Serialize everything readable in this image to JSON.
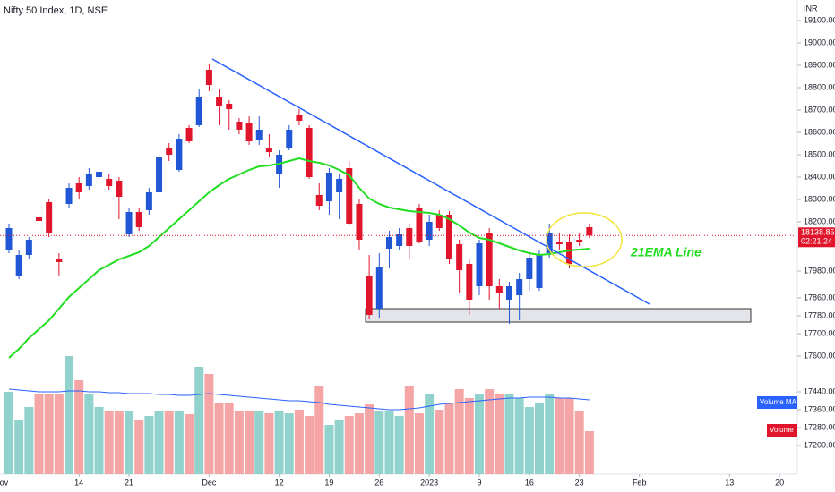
{
  "chart_data": {
    "type": "candlestick",
    "title": "Nifty 50 Index, 1D, NSE",
    "currency": "INR",
    "ylim": [
      17072,
      19192
    ],
    "yticks": [
      {
        "value": 19100,
        "label": "19100.00"
      },
      {
        "value": 19000,
        "label": "19000.00"
      },
      {
        "value": 18900,
        "label": "18900.00"
      },
      {
        "value": 18800,
        "label": "18800.00"
      },
      {
        "value": 18700,
        "label": "18700.00"
      },
      {
        "value": 18600,
        "label": "18600.00"
      },
      {
        "value": 18500,
        "label": "18500.00"
      },
      {
        "value": 18400,
        "label": "18400.00"
      },
      {
        "value": 18300,
        "label": "18300.00"
      },
      {
        "value": 18200,
        "label": "18200.00"
      },
      {
        "value": 17980,
        "label": "17980.00"
      },
      {
        "value": 17860,
        "label": "17860.00"
      },
      {
        "value": 17780,
        "label": "17780.00"
      },
      {
        "value": 17700,
        "label": "17700.00"
      },
      {
        "value": 17600,
        "label": "17600.00"
      },
      {
        "value": 17440,
        "label": "17440.00"
      },
      {
        "value": 17360,
        "label": "17360.00"
      },
      {
        "value": 17280,
        "label": "17280.00"
      },
      {
        "value": 17200,
        "label": "17200.00"
      }
    ],
    "xticks": [
      {
        "value": -0.5,
        "label": "ov"
      },
      {
        "value": 7,
        "label": "14"
      },
      {
        "value": 12,
        "label": "21"
      },
      {
        "value": 20,
        "label": "Dec"
      },
      {
        "value": 27,
        "label": "12"
      },
      {
        "value": 32,
        "label": "19"
      },
      {
        "value": 37,
        "label": "26"
      },
      {
        "value": 42,
        "label": "2023"
      },
      {
        "value": 47,
        "label": "9"
      },
      {
        "value": 52,
        "label": "16"
      },
      {
        "value": 57,
        "label": "23"
      },
      {
        "value": 63,
        "label": "Feb"
      },
      {
        "value": 72,
        "label": "13"
      },
      {
        "value": 77,
        "label": "20"
      }
    ],
    "up_color": "#2157d6",
    "down_color": "#e0142b",
    "volume_up_color": "#92d2cc",
    "volume_down_color": "#f5a5a5",
    "candles": [
      {
        "o": 18072,
        "h": 18192,
        "l": 18060,
        "c": 18172
      },
      {
        "o": 17960,
        "h": 18072,
        "l": 17944,
        "c": 18052
      },
      {
        "o": 18052,
        "h": 18132,
        "l": 18032,
        "c": 18120
      },
      {
        "o": 18220,
        "h": 18252,
        "l": 18192,
        "c": 18204
      },
      {
        "o": 18288,
        "h": 18304,
        "l": 18132,
        "c": 18152
      },
      {
        "o": 18032,
        "h": 18060,
        "l": 17960,
        "c": 18020
      },
      {
        "o": 18280,
        "h": 18372,
        "l": 18264,
        "c": 18352
      },
      {
        "o": 18372,
        "h": 18400,
        "l": 18304,
        "c": 18332
      },
      {
        "o": 18360,
        "h": 18440,
        "l": 18344,
        "c": 18412
      },
      {
        "o": 18400,
        "h": 18452,
        "l": 18392,
        "c": 18424
      },
      {
        "o": 18392,
        "h": 18412,
        "l": 18344,
        "c": 18360
      },
      {
        "o": 18384,
        "h": 18400,
        "l": 18212,
        "c": 18312
      },
      {
        "o": 18144,
        "h": 18264,
        "l": 18132,
        "c": 18244
      },
      {
        "o": 18244,
        "h": 18260,
        "l": 18160,
        "c": 18176
      },
      {
        "o": 18252,
        "h": 18352,
        "l": 18232,
        "c": 18332
      },
      {
        "o": 18332,
        "h": 18512,
        "l": 18320,
        "c": 18488
      },
      {
        "o": 18532,
        "h": 18552,
        "l": 18472,
        "c": 18500
      },
      {
        "o": 18432,
        "h": 18592,
        "l": 18424,
        "c": 18572
      },
      {
        "o": 18620,
        "h": 18632,
        "l": 18552,
        "c": 18560
      },
      {
        "o": 18632,
        "h": 18792,
        "l": 18624,
        "c": 18760
      },
      {
        "o": 18880,
        "h": 18904,
        "l": 18784,
        "c": 18812
      },
      {
        "o": 18760,
        "h": 18792,
        "l": 18632,
        "c": 18720
      },
      {
        "o": 18728,
        "h": 18744,
        "l": 18612,
        "c": 18704
      },
      {
        "o": 18648,
        "h": 18664,
        "l": 18592,
        "c": 18612
      },
      {
        "o": 18640,
        "h": 18672,
        "l": 18544,
        "c": 18560
      },
      {
        "o": 18564,
        "h": 18672,
        "l": 18544,
        "c": 18612
      },
      {
        "o": 18532,
        "h": 18592,
        "l": 18492,
        "c": 18512
      },
      {
        "o": 18412,
        "h": 18520,
        "l": 18352,
        "c": 18500
      },
      {
        "o": 18532,
        "h": 18632,
        "l": 18520,
        "c": 18612
      },
      {
        "o": 18680,
        "h": 18704,
        "l": 18632,
        "c": 18652
      },
      {
        "o": 18620,
        "h": 18632,
        "l": 18392,
        "c": 18400
      },
      {
        "o": 18320,
        "h": 18372,
        "l": 18252,
        "c": 18272
      },
      {
        "o": 18292,
        "h": 18440,
        "l": 18232,
        "c": 18420
      },
      {
        "o": 18332,
        "h": 18412,
        "l": 18212,
        "c": 18392
      },
      {
        "o": 18440,
        "h": 18472,
        "l": 18184,
        "c": 18192
      },
      {
        "o": 18280,
        "h": 18304,
        "l": 18072,
        "c": 18120
      },
      {
        "o": 17960,
        "h": 18052,
        "l": 17764,
        "c": 17784
      },
      {
        "o": 17812,
        "h": 18060,
        "l": 17772,
        "c": 18000
      },
      {
        "o": 18080,
        "h": 18160,
        "l": 17992,
        "c": 18132
      },
      {
        "o": 18092,
        "h": 18172,
        "l": 18072,
        "c": 18144
      },
      {
        "o": 18172,
        "h": 18192,
        "l": 18032,
        "c": 18092
      },
      {
        "o": 18264,
        "h": 18280,
        "l": 18104,
        "c": 18112
      },
      {
        "o": 18120,
        "h": 18232,
        "l": 18092,
        "c": 18200
      },
      {
        "o": 18232,
        "h": 18252,
        "l": 18160,
        "c": 18172
      },
      {
        "o": 18232,
        "h": 18248,
        "l": 18012,
        "c": 18032
      },
      {
        "o": 18100,
        "h": 18120,
        "l": 17880,
        "c": 17984
      },
      {
        "o": 18012,
        "h": 18032,
        "l": 17784,
        "c": 17852
      },
      {
        "o": 17912,
        "h": 18120,
        "l": 17872,
        "c": 18104
      },
      {
        "o": 18152,
        "h": 18172,
        "l": 17852,
        "c": 17912
      },
      {
        "o": 17912,
        "h": 17944,
        "l": 17812,
        "c": 17880
      },
      {
        "o": 17852,
        "h": 17932,
        "l": 17744,
        "c": 17912
      },
      {
        "o": 17872,
        "h": 17972,
        "l": 17760,
        "c": 17944
      },
      {
        "o": 17944,
        "h": 18060,
        "l": 17892,
        "c": 18040
      },
      {
        "o": 17904,
        "h": 18072,
        "l": 17892,
        "c": 18052
      },
      {
        "o": 18060,
        "h": 18192,
        "l": 18040,
        "c": 18152
      },
      {
        "o": 18112,
        "h": 18152,
        "l": 18072,
        "c": 18100
      },
      {
        "o": 18112,
        "h": 18144,
        "l": 17992,
        "c": 18012
      },
      {
        "o": 18120,
        "h": 18152,
        "l": 18092,
        "c": 18112
      },
      {
        "o": 18176,
        "h": 18192,
        "l": 18128,
        "c": 18138.85
      }
    ],
    "ema_name": "21EMA Line",
    "ema_color": "#22dd22",
    "ema": [
      17592,
      17632,
      17680,
      17720,
      17760,
      17812,
      17864,
      17904,
      17944,
      17984,
      18008,
      18032,
      18048,
      18064,
      18092,
      18132,
      18172,
      18212,
      18252,
      18292,
      18332,
      18364,
      18392,
      18412,
      18432,
      18448,
      18452,
      18460,
      18472,
      18484,
      18472,
      18464,
      18452,
      18432,
      18408,
      18352,
      18304,
      18280,
      18264,
      18256,
      18248,
      18244,
      18240,
      18232,
      18212,
      18184,
      18152,
      18128,
      18120,
      18104,
      18088,
      18072,
      18060,
      18052,
      18056,
      18064,
      18072,
      18076,
      18080
    ],
    "volume_name": "Volume",
    "volume_ma_name": "Volume MA",
    "volume_ma_color": "#2962ff",
    "vlim": [
      0,
      180
    ],
    "volumes": [
      92,
      60,
      75,
      90,
      90,
      90,
      132,
      105,
      90,
      75,
      70,
      70,
      70,
      60,
      65,
      70,
      70,
      70,
      67,
      120,
      112,
      80,
      80,
      70,
      70,
      70,
      68,
      70,
      68,
      72,
      65,
      98,
      55,
      60,
      65,
      68,
      78,
      70,
      70,
      65,
      98,
      68,
      90,
      72,
      80,
      95,
      85,
      90,
      95,
      90,
      90,
      85,
      75,
      80,
      90,
      85,
      85,
      70,
      48
    ],
    "volume_ma": [
      95,
      94,
      93,
      92,
      92,
      92,
      93,
      93,
      92,
      92,
      91,
      91,
      90,
      90,
      90,
      89,
      89,
      88,
      88,
      89,
      90,
      89,
      88,
      87,
      86,
      85,
      84,
      83,
      82,
      82,
      81,
      80,
      78,
      77,
      76,
      75,
      74,
      73,
      72,
      72,
      73,
      74,
      76,
      78,
      79,
      80,
      81,
      82,
      83,
      84,
      85,
      85,
      86,
      86,
      86,
      85,
      85,
      84,
      83
    ],
    "last_price": 18138.85,
    "countdown": "02:21:24"
  }
}
